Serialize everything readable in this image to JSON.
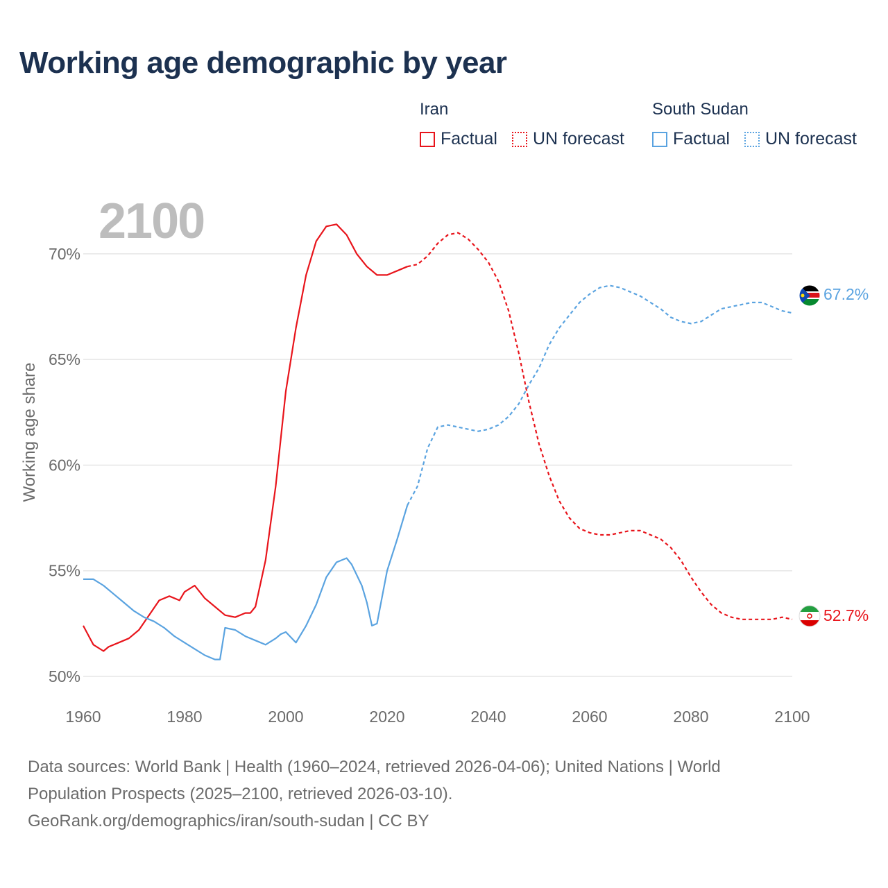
{
  "title": "Working age demographic by year",
  "legend": {
    "groups": [
      {
        "name": "Iran",
        "color": "#e8141b",
        "factual_label": "Factual",
        "forecast_label": "UN forecast"
      },
      {
        "name": "South Sudan",
        "color": "#5aa3e0",
        "factual_label": "Factual",
        "forecast_label": "UN forecast"
      }
    ]
  },
  "year_watermark": "2100",
  "end_labels": {
    "iran": "52.7%",
    "south_sudan": "67.2%"
  },
  "sources": {
    "line1": "Data sources: World Bank | Health (1960–2024, retrieved 2026-04-06); United Nations | World",
    "line2": "Population Prospects (2025–2100, retrieved 2026-03-10).",
    "line3": "GeoRank.org/demographics/iran/south-sudan | CC BY"
  },
  "colors": {
    "iran": "#e8141b",
    "south_sudan": "#5aa3e0",
    "title": "#1c3150",
    "grid": "#e6e6e6",
    "axis_text": "#6b6b6b",
    "watermark": "#bdbdbd"
  },
  "chart_data": {
    "type": "line",
    "title": "Working age demographic by year",
    "xlabel": "",
    "ylabel": "Working age share",
    "xlim": [
      1960,
      2100
    ],
    "ylim": [
      50,
      72
    ],
    "x_ticks": [
      1960,
      1980,
      2000,
      2020,
      2040,
      2060,
      2080,
      2100
    ],
    "x_tick_labels": [
      "1960",
      "1980",
      "2000",
      "2020",
      "2040",
      "2060",
      "2080",
      "2100"
    ],
    "y_ticks": [
      50,
      55,
      60,
      65,
      70
    ],
    "y_tick_labels": [
      "50%",
      "55%",
      "60%",
      "65%",
      "70%"
    ],
    "grid": true,
    "legend_position": "top-right",
    "series": [
      {
        "name": "Iran",
        "color": "#e8141b",
        "factual": {
          "x": [
            1960,
            1962,
            1964,
            1965,
            1967,
            1969,
            1971,
            1973,
            1975,
            1977,
            1979,
            1980,
            1982,
            1984,
            1986,
            1988,
            1990,
            1992,
            1993,
            1994,
            1996,
            1998,
            2000,
            2002,
            2004,
            2006,
            2008,
            2010,
            2012,
            2014,
            2016,
            2018,
            2020,
            2022,
            2024
          ],
          "y": [
            52.4,
            51.5,
            51.2,
            51.4,
            51.6,
            51.8,
            52.2,
            52.9,
            53.6,
            53.8,
            53.6,
            54.0,
            54.3,
            53.7,
            53.3,
            52.9,
            52.8,
            53.0,
            53.0,
            53.3,
            55.5,
            59.0,
            63.5,
            66.5,
            69.0,
            70.6,
            71.3,
            71.4,
            70.9,
            70.0,
            69.4,
            69.0,
            69.0,
            69.2,
            69.4
          ]
        },
        "forecast": {
          "x": [
            2024,
            2026,
            2028,
            2030,
            2032,
            2034,
            2036,
            2038,
            2040,
            2042,
            2044,
            2046,
            2048,
            2050,
            2052,
            2054,
            2056,
            2058,
            2060,
            2062,
            2064,
            2066,
            2068,
            2070,
            2072,
            2074,
            2076,
            2078,
            2080,
            2082,
            2084,
            2086,
            2088,
            2090,
            2092,
            2094,
            2096,
            2098,
            2100
          ],
          "y": [
            69.4,
            69.5,
            69.9,
            70.5,
            70.9,
            71.0,
            70.7,
            70.2,
            69.6,
            68.7,
            67.3,
            65.3,
            63.0,
            61.0,
            59.5,
            58.3,
            57.5,
            57.0,
            56.8,
            56.7,
            56.7,
            56.8,
            56.9,
            56.9,
            56.7,
            56.5,
            56.1,
            55.5,
            54.7,
            54.0,
            53.4,
            53.0,
            52.8,
            52.7,
            52.7,
            52.7,
            52.7,
            52.8,
            52.7
          ]
        },
        "end_value": 52.7
      },
      {
        "name": "South Sudan",
        "color": "#5aa3e0",
        "factual": {
          "x": [
            1960,
            1962,
            1964,
            1966,
            1968,
            1970,
            1972,
            1974,
            1976,
            1978,
            1980,
            1982,
            1984,
            1986,
            1987,
            1988,
            1990,
            1992,
            1994,
            1996,
            1998,
            1999,
            2000,
            2002,
            2004,
            2006,
            2008,
            2010,
            2012,
            2013,
            2015,
            2016,
            2017,
            2018,
            2020,
            2022,
            2024
          ],
          "y": [
            54.6,
            54.6,
            54.3,
            53.9,
            53.5,
            53.1,
            52.8,
            52.6,
            52.3,
            51.9,
            51.6,
            51.3,
            51.0,
            50.8,
            50.8,
            52.3,
            52.2,
            51.9,
            51.7,
            51.5,
            51.8,
            52.0,
            52.1,
            51.6,
            52.4,
            53.4,
            54.7,
            55.4,
            55.6,
            55.3,
            54.3,
            53.5,
            52.4,
            52.5,
            55.0,
            56.5,
            58.1
          ]
        },
        "forecast": {
          "x": [
            2024,
            2026,
            2028,
            2030,
            2032,
            2034,
            2036,
            2038,
            2040,
            2042,
            2044,
            2046,
            2048,
            2050,
            2052,
            2054,
            2056,
            2058,
            2060,
            2062,
            2064,
            2066,
            2068,
            2070,
            2072,
            2074,
            2076,
            2078,
            2080,
            2082,
            2084,
            2086,
            2088,
            2090,
            2092,
            2094,
            2096,
            2098,
            2100
          ],
          "y": [
            58.1,
            59.0,
            60.8,
            61.8,
            61.9,
            61.8,
            61.7,
            61.6,
            61.7,
            61.9,
            62.3,
            62.9,
            63.8,
            64.6,
            65.7,
            66.5,
            67.1,
            67.7,
            68.1,
            68.4,
            68.5,
            68.4,
            68.2,
            68.0,
            67.7,
            67.4,
            67.0,
            66.8,
            66.7,
            66.8,
            67.1,
            67.4,
            67.5,
            67.6,
            67.7,
            67.7,
            67.5,
            67.3,
            67.2
          ]
        },
        "end_value": 67.2
      }
    ]
  }
}
